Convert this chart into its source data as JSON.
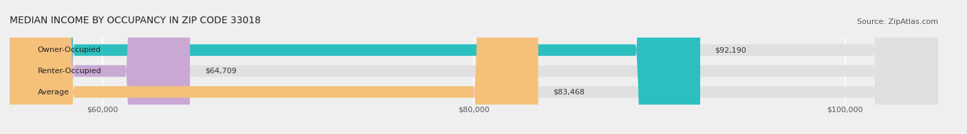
{
  "title": "MEDIAN INCOME BY OCCUPANCY IN ZIP CODE 33018",
  "source": "Source: ZipAtlas.com",
  "categories": [
    "Owner-Occupied",
    "Renter-Occupied",
    "Average"
  ],
  "values": [
    92190,
    64709,
    83468
  ],
  "labels": [
    "$92,190",
    "$64,709",
    "$83,468"
  ],
  "bar_colors": [
    "#2bbfbf",
    "#c9a8d4",
    "#f5c07a"
  ],
  "xlim": [
    55000,
    105000
  ],
  "xticks": [
    60000,
    80000,
    100000
  ],
  "xticklabels": [
    "$60,000",
    "$80,000",
    "$100,000"
  ],
  "title_fontsize": 10,
  "source_fontsize": 8,
  "label_fontsize": 8,
  "xtick_fontsize": 8,
  "bar_height": 0.55,
  "background_color": "#efefef",
  "bar_bg_color": "#e0e0e0",
  "grid_color": "#ffffff"
}
